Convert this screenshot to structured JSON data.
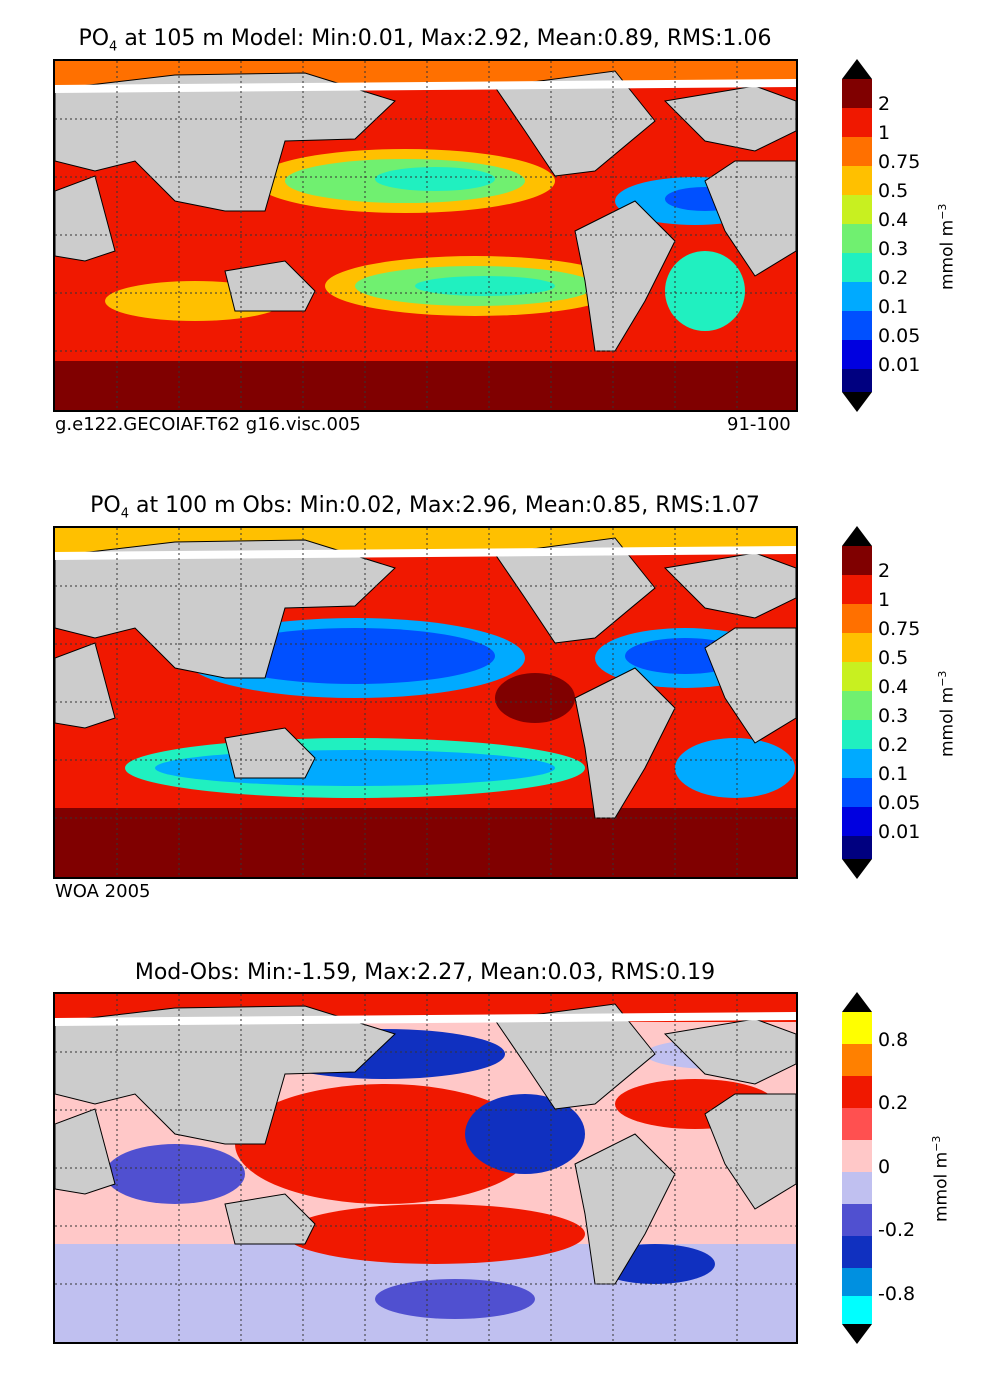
{
  "panels": [
    {
      "title_prefix": "PO",
      "title_sub": "4",
      "title_rest": " at 105 m Model: Min:0.01, Max:2.92, Mean:0.89, RMS:1.06",
      "footer_left": "g.e122.GECOIAF.T62 g16.visc.005",
      "footer_right": "91-100",
      "colorbar_labels": [
        "2",
        "1",
        "0.75",
        "0.5",
        "0.4",
        "0.3",
        "0.2",
        "0.1",
        "0.05",
        "0.01"
      ],
      "units": "mmol m",
      "units_exp": "−3"
    },
    {
      "title_prefix": "PO",
      "title_sub": "4",
      "title_rest": " at 100 m Obs: Min:0.02, Max:2.96, Mean:0.85, RMS:1.07",
      "footer_left": "WOA 2005",
      "footer_right": "",
      "colorbar_labels": [
        "2",
        "1",
        "0.75",
        "0.5",
        "0.4",
        "0.3",
        "0.2",
        "0.1",
        "0.05",
        "0.01"
      ],
      "units": "mmol m",
      "units_exp": "−3"
    },
    {
      "title_prefix": "",
      "title_sub": "",
      "title_rest": "Mod-Obs: Min:-1.59, Max:2.27, Mean:0.03, RMS:0.19",
      "footer_left": "",
      "footer_right": "",
      "colorbar_labels": [
        "0.8",
        "0.2",
        "0",
        "-0.2",
        "-0.8"
      ],
      "units": "mmol m",
      "units_exp": "−3"
    }
  ],
  "colors": {
    "seq": [
      "#000080",
      "#0000e0",
      "#0050ff",
      "#00aaff",
      "#20f0c0",
      "#70f070",
      "#c8f020",
      "#ffc000",
      "#ff7000",
      "#f01800",
      "#800000"
    ],
    "diff": [
      "#00ffff",
      "#0090e0",
      "#1030c0",
      "#5050d0",
      "#c0c0f0",
      "#ffc8c8",
      "#ff5050",
      "#f01800",
      "#ff8000",
      "#ffff00"
    ],
    "land": "#cccccc"
  }
}
